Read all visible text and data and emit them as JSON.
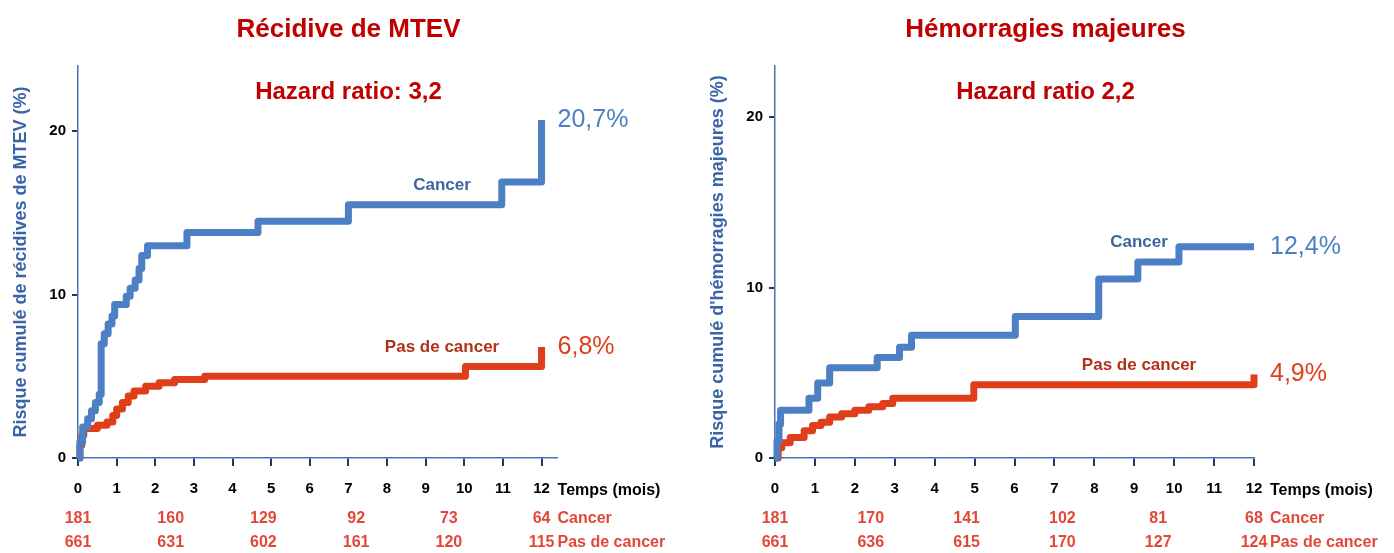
{
  "chart_data": [
    {
      "type": "step",
      "title": "Récidive de MTEV",
      "subtitle": "Hazard ratio: 3,2",
      "xlabel": "Temps (mois)",
      "ylabel": "Risque cumulé de récidives de MTEV (%)",
      "xlim": [
        0,
        12.4
      ],
      "xticks": [
        0,
        1,
        2,
        3,
        4,
        5,
        6,
        7,
        8,
        9,
        10,
        11,
        12
      ],
      "ylim": [
        0,
        24
      ],
      "yticks": [
        0,
        10,
        20
      ],
      "series": [
        {
          "name": "Cancer",
          "color": "#4d7fc4",
          "x": [
            0,
            0.05,
            0.12,
            0.25,
            0.35,
            0.45,
            0.55,
            0.6,
            0.68,
            0.78,
            0.88,
            0.95,
            1.25,
            1.35,
            1.48,
            1.58,
            1.65,
            1.8,
            2.82,
            4.66,
            7.0,
            10.97,
            12.0
          ],
          "values": [
            0,
            1.0,
            1.9,
            2.4,
            2.9,
            3.4,
            3.9,
            7.0,
            7.6,
            8.2,
            8.7,
            9.4,
            9.9,
            10.4,
            10.9,
            11.6,
            12.4,
            13.0,
            13.8,
            14.5,
            15.5,
            16.9,
            20.7
          ]
        },
        {
          "name": "Pas de cancer",
          "color": "#df3e1b",
          "x": [
            0,
            0.05,
            0.1,
            0.15,
            0.5,
            0.75,
            0.9,
            1.0,
            1.15,
            1.3,
            1.45,
            1.75,
            2.1,
            2.5,
            3.28,
            10.03,
            12.0
          ],
          "values": [
            0,
            0.8,
            1.4,
            1.8,
            2.0,
            2.2,
            2.6,
            3.0,
            3.4,
            3.8,
            4.1,
            4.4,
            4.6,
            4.8,
            5.0,
            5.6,
            6.8
          ]
        }
      ],
      "annotations": [
        "20,7%",
        "6,8%",
        "181",
        "160",
        "129",
        "92",
        "73",
        "64",
        "Cancer",
        "661",
        "631",
        "602",
        "161",
        "120",
        "115",
        "Pas de cancer"
      ]
    },
    {
      "type": "step",
      "title": "Hémorragies majeures",
      "subtitle": "Hazard ratio 2,2",
      "xlabel": "Temps (mois)",
      "ylabel": "Risque cumulé d'hémorragies majeures (%)",
      "xlim": [
        0,
        12
      ],
      "xticks": [
        0,
        1,
        2,
        3,
        4,
        5,
        6,
        7,
        8,
        9,
        10,
        11,
        12
      ],
      "ylim": [
        0,
        23
      ],
      "yticks": [
        0,
        10,
        20
      ],
      "series": [
        {
          "name": "Cancer",
          "color": "#4d7fc4",
          "x": [
            0,
            0.05,
            0.1,
            0.14,
            0.85,
            1.07,
            1.37,
            2.56,
            3.12,
            3.42,
            6.02,
            8.11,
            9.09,
            10.12,
            12.0
          ],
          "values": [
            0,
            1.0,
            2.0,
            2.8,
            3.5,
            4.4,
            5.3,
            5.9,
            6.5,
            7.2,
            8.3,
            10.5,
            11.5,
            12.4,
            12.4
          ]
        },
        {
          "name": "Pas de cancer",
          "color": "#df3e1b",
          "x": [
            0,
            0.08,
            0.17,
            0.38,
            0.73,
            0.94,
            1.15,
            1.37,
            1.67,
            2.0,
            2.35,
            2.7,
            2.95,
            4.98,
            12.0
          ],
          "values": [
            0,
            0.6,
            0.9,
            1.2,
            1.6,
            1.9,
            2.1,
            2.4,
            2.6,
            2.8,
            3.0,
            3.2,
            3.5,
            4.3,
            4.9
          ]
        }
      ],
      "annotations": [
        "12,4%",
        "4,9%",
        "181",
        "170",
        "141",
        "102",
        "81",
        "68",
        "Cancer",
        "661",
        "636",
        "615",
        "170",
        "127",
        "124",
        "Pas de cancer"
      ]
    }
  ]
}
